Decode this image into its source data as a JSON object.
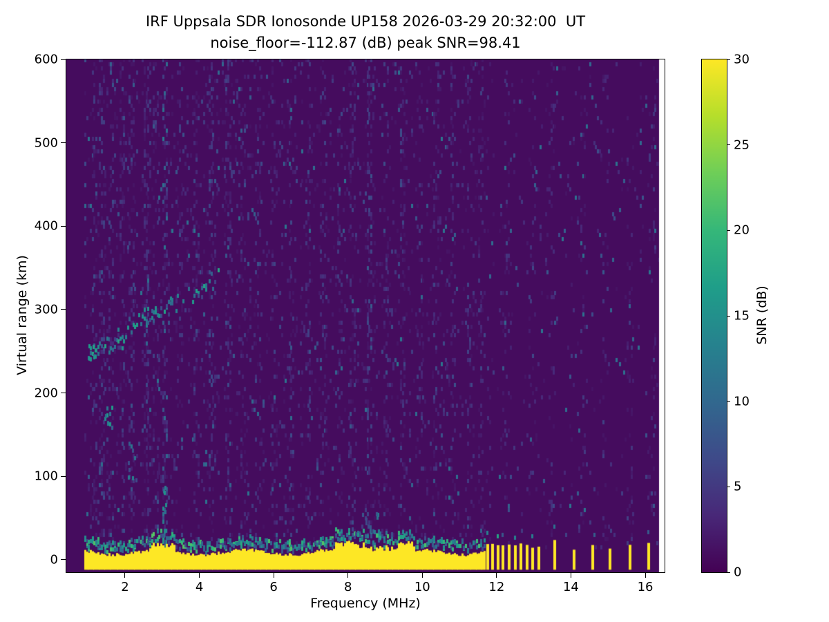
{
  "chart_data": {
    "type": "heatmap",
    "title": "IRF Uppsala SDR Ionosonde UP158 2026-03-29 20:32:00  UT",
    "subtitle": "noise_floor=-112.87 (dB) peak SNR=98.41",
    "station": "IRF Uppsala SDR Ionosonde UP158",
    "timestamp_ut": "2026-03-29 20:32:00",
    "noise_floor_db": -112.87,
    "peak_snr_db": 98.41,
    "xlabel": "Frequency (MHz)",
    "ylabel": "Virtual range (km)",
    "xlim": [
      0.42,
      16.52
    ],
    "ylim": [
      -15,
      600
    ],
    "axes": {
      "xticks": [
        2,
        4,
        6,
        8,
        10,
        12,
        14,
        16
      ],
      "yticks": [
        0,
        100,
        200,
        300,
        400,
        500,
        600
      ]
    },
    "colorbar": {
      "label": "SNR (dB)",
      "min": 0,
      "max": 30,
      "ticks": [
        0,
        5,
        10,
        15,
        20,
        25,
        30
      ],
      "colormap": "viridis",
      "colormap_stops": [
        "#440154",
        "#482878",
        "#3e4a89",
        "#31688e",
        "#26828e",
        "#1f9e89",
        "#35b779",
        "#6ece58",
        "#b5de2b",
        "#fde725"
      ]
    },
    "features": {
      "data_f_range": [
        0.9,
        16.37
      ],
      "background_snr_db": 0.9,
      "noise_speckle": {
        "left_density": 0.055,
        "right_density": 0.018,
        "boundary_mhz": 11.65
      },
      "rfi_columns": [
        {
          "f": 1.15,
          "density": 0.2,
          "snr": 7
        },
        {
          "f": 1.35,
          "density": 0.3,
          "snr": 8
        },
        {
          "f": 1.6,
          "density": 0.25,
          "snr": 9
        },
        {
          "f": 1.9,
          "density": 0.22,
          "snr": 7
        },
        {
          "f": 2.15,
          "density": 0.28,
          "snr": 8
        },
        {
          "f": 2.55,
          "density": 0.38,
          "snr": 9
        },
        {
          "f": 2.8,
          "density": 0.2,
          "snr": 7
        },
        {
          "f": 3.05,
          "density": 0.32,
          "snr": 12
        },
        {
          "f": 3.45,
          "density": 0.18,
          "snr": 6
        },
        {
          "f": 3.9,
          "density": 0.2,
          "snr": 7
        },
        {
          "f": 4.3,
          "density": 0.25,
          "snr": 8
        },
        {
          "f": 4.75,
          "density": 0.3,
          "snr": 9
        },
        {
          "f": 5.15,
          "density": 0.18,
          "snr": 6
        },
        {
          "f": 5.55,
          "density": 0.2,
          "snr": 7
        },
        {
          "f": 6.0,
          "density": 0.16,
          "snr": 6
        },
        {
          "f": 6.45,
          "density": 0.2,
          "snr": 7
        },
        {
          "f": 6.9,
          "density": 0.16,
          "snr": 6
        },
        {
          "f": 7.3,
          "density": 0.2,
          "snr": 7
        },
        {
          "f": 7.75,
          "density": 0.18,
          "snr": 6
        },
        {
          "f": 8.1,
          "density": 0.24,
          "snr": 8
        },
        {
          "f": 8.55,
          "density": 0.3,
          "snr": 9
        },
        {
          "f": 9.0,
          "density": 0.2,
          "snr": 7
        },
        {
          "f": 9.45,
          "density": 0.22,
          "snr": 7
        },
        {
          "f": 9.9,
          "density": 0.18,
          "snr": 6
        },
        {
          "f": 10.35,
          "density": 0.2,
          "snr": 7
        },
        {
          "f": 10.8,
          "density": 0.16,
          "snr": 6
        },
        {
          "f": 11.25,
          "density": 0.2,
          "snr": 7
        },
        {
          "f": 11.55,
          "density": 0.18,
          "snr": 6
        },
        {
          "f": 12.25,
          "density": 0.12,
          "snr": 5
        },
        {
          "f": 12.9,
          "density": 0.1,
          "snr": 5
        },
        {
          "f": 13.45,
          "density": 0.12,
          "snr": 5
        },
        {
          "f": 14.3,
          "density": 0.1,
          "snr": 5
        },
        {
          "f": 14.9,
          "density": 0.1,
          "snr": 5
        },
        {
          "f": 15.55,
          "density": 0.1,
          "snr": 5
        },
        {
          "f": 16.2,
          "density": 0.12,
          "snr": 5
        }
      ],
      "echo_trace": {
        "points_mhz_km": [
          [
            1.0,
            242
          ],
          [
            1.4,
            250
          ],
          [
            1.8,
            261
          ],
          [
            2.2,
            277
          ],
          [
            2.6,
            288
          ],
          [
            3.0,
            296
          ],
          [
            3.4,
            306
          ],
          [
            3.8,
            315
          ],
          [
            4.2,
            326
          ],
          [
            4.6,
            338
          ]
        ],
        "spread_km": 20,
        "snr": 16,
        "dense_until_mhz": 3.2,
        "prob_dense": 0.85,
        "prob_sparse": 0.45
      },
      "extra_blobs": [
        {
          "f": 1.55,
          "km": 168,
          "df": 0.25,
          "dkm": 35,
          "n": 10,
          "snr": 14
        },
        {
          "f": 2.15,
          "km": 112,
          "df": 0.3,
          "dkm": 45,
          "n": 8,
          "snr": 10
        },
        {
          "f": 3.05,
          "km": 48,
          "df": 0.12,
          "dkm": 80,
          "n": 14,
          "snr": 13
        },
        {
          "f": 8.5,
          "km": 40,
          "df": 0.6,
          "dkm": 28,
          "n": 14,
          "snr": 11
        },
        {
          "f": 1.1,
          "km": 244,
          "df": 0.2,
          "dkm": 20,
          "n": 8,
          "snr": 14
        }
      ],
      "ground_band": {
        "f_range": [
          0.9,
          11.68
        ],
        "km_range": [
          -12,
          7
        ],
        "snr": 30
      },
      "pulse_bursts": {
        "f_list": [
          11.72,
          11.86,
          12.0,
          12.14,
          12.3,
          12.46,
          12.62,
          12.78,
          12.94,
          13.1,
          13.52,
          14.05,
          14.55,
          15.02,
          15.55,
          16.05
        ],
        "km_range": [
          -12,
          24
        ],
        "width_mhz": 0.07,
        "snr": 30
      },
      "blank_column_f": 16.38
    }
  }
}
